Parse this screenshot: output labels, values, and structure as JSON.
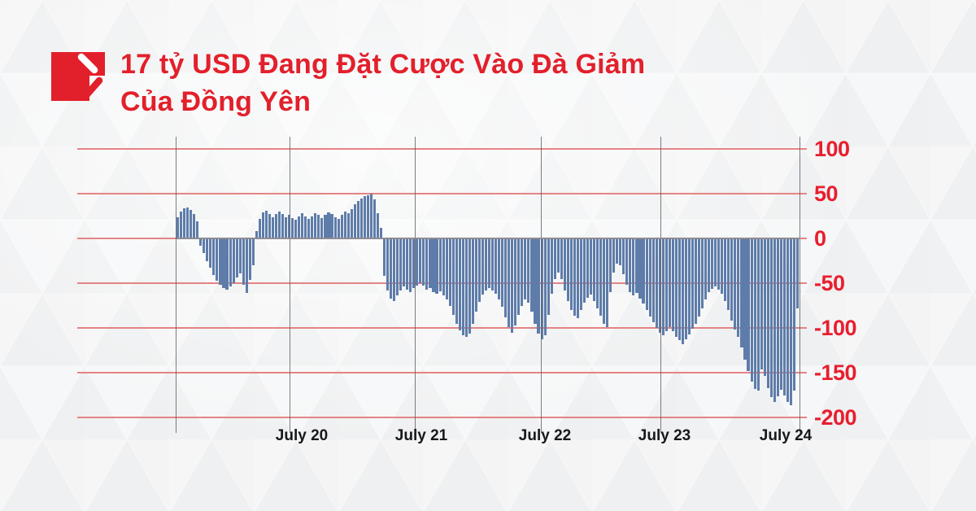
{
  "header": {
    "title_line1": "17 tỷ USD Đang Đặt Cược Vào Đà Giảm",
    "title_line2": "Của Đồng Yên",
    "logo": "red-square-double-slash-logo"
  },
  "colors": {
    "accent_red": "#e2202b",
    "axis_tick_red": "#e81e2e",
    "gridline_red": "#e58484",
    "day_gridline_gray": "#5c5c62",
    "zero_line_gray": "#8d8b93",
    "bar_blue": "#5e7ca9",
    "x_label_dark": "#17181b",
    "background": "#f2f2f3"
  },
  "chart_data": {
    "type": "bar",
    "title": "17 tỷ USD Đang Đặt Cược Vào Đà Giảm Của Đồng Yên",
    "x_tick_labels": [
      "July 20",
      "July 21",
      "July 22",
      "July 23",
      "July 24"
    ],
    "y_ticks": [
      100,
      50,
      0,
      -50,
      -100,
      -150,
      -200
    ],
    "ylim": [
      -200,
      100
    ],
    "grid": true,
    "y_axis_side": "right",
    "legend": false,
    "values": [
      24,
      30,
      34,
      35,
      32,
      27,
      19,
      -8,
      -16,
      -25,
      -33,
      -41,
      -47,
      -52,
      -55,
      -57,
      -54,
      -50,
      -44,
      -39,
      -52,
      -61,
      -46,
      -30,
      8,
      22,
      29,
      31,
      27,
      24,
      27,
      30,
      27,
      24,
      26,
      23,
      21,
      25,
      28,
      25,
      22,
      25,
      28,
      26,
      23,
      26,
      29,
      27,
      24,
      22,
      26,
      30,
      28,
      33,
      38,
      42,
      45,
      47,
      48,
      50,
      44,
      28,
      12,
      -42,
      -58,
      -67,
      -70,
      -64,
      -58,
      -54,
      -57,
      -60,
      -55,
      -53,
      -50,
      -53,
      -57,
      -55,
      -60,
      -62,
      -59,
      -64,
      -68,
      -75,
      -85,
      -95,
      -103,
      -108,
      -110,
      -106,
      -95,
      -82,
      -71,
      -63,
      -58,
      -55,
      -58,
      -62,
      -68,
      -76,
      -88,
      -99,
      -105,
      -97,
      -85,
      -75,
      -68,
      -72,
      -82,
      -95,
      -106,
      -113,
      -108,
      -85,
      -62,
      -45,
      -38,
      -45,
      -58,
      -70,
      -80,
      -86,
      -89,
      -80,
      -72,
      -66,
      -63,
      -70,
      -78,
      -86,
      -95,
      -99,
      -60,
      -38,
      -28,
      -30,
      -40,
      -52,
      -60,
      -64,
      -61,
      -67,
      -73,
      -80,
      -87,
      -94,
      -100,
      -105,
      -108,
      -104,
      -99,
      -104,
      -110,
      -114,
      -118,
      -113,
      -107,
      -101,
      -95,
      -87,
      -78,
      -68,
      -60,
      -56,
      -54,
      -57,
      -62,
      -70,
      -80,
      -92,
      -102,
      -110,
      -122,
      -135,
      -148,
      -160,
      -168,
      -170,
      -146,
      -154,
      -167,
      -177,
      -183,
      -176,
      -169,
      -175,
      -183,
      -186,
      -170,
      -78
    ]
  }
}
